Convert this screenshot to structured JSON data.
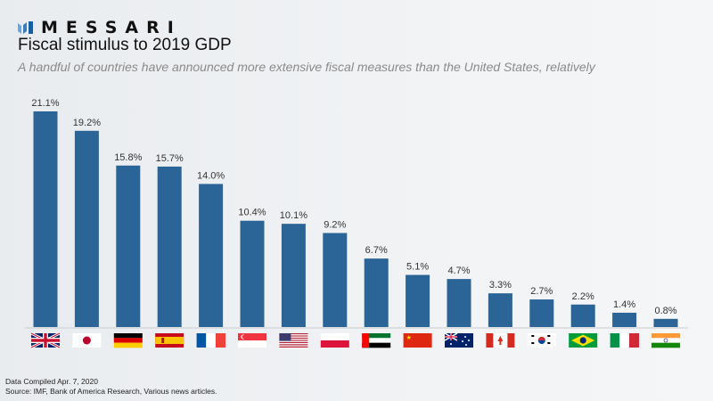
{
  "brand": {
    "name": "MESSARI",
    "logo_color": "#3a7cc0"
  },
  "header": {
    "title": "Fiscal stimulus to 2019 GDP",
    "subtitle": "A handful of countries have announced more extensive fiscal measures than the United States, relatively"
  },
  "footer": {
    "compiled": "Data Compiled Apr. 7, 2020",
    "source": "Source: IMF, Bank of America Research, Various news articles."
  },
  "chart_data": {
    "type": "bar",
    "title": "Fiscal stimulus to 2019 GDP",
    "categories": [
      "uk-flag",
      "japan-flag",
      "germany-flag",
      "spain-flag",
      "france-flag",
      "singapore-flag",
      "usa-flag",
      "poland-flag",
      "uae-flag",
      "china-flag",
      "australia-flag",
      "canada-flag",
      "south-korea-flag",
      "brazil-flag",
      "italy-flag",
      "india-flag"
    ],
    "values": [
      21.1,
      19.2,
      15.8,
      15.7,
      14.0,
      10.4,
      10.1,
      9.2,
      6.7,
      5.1,
      4.7,
      3.3,
      2.7,
      2.2,
      1.4,
      0.8
    ],
    "labels": [
      "21.1%",
      "19.2%",
      "15.8%",
      "15.7%",
      "14.0%",
      "10.4%",
      "10.1%",
      "9.2%",
      "6.7%",
      "5.1%",
      "4.7%",
      "3.3%",
      "2.7%",
      "2.2%",
      "1.4%",
      "0.8%"
    ],
    "ylim": [
      0,
      21.1
    ],
    "bar_color": "#2b6496",
    "grid": false,
    "xlabel": "",
    "ylabel": ""
  }
}
